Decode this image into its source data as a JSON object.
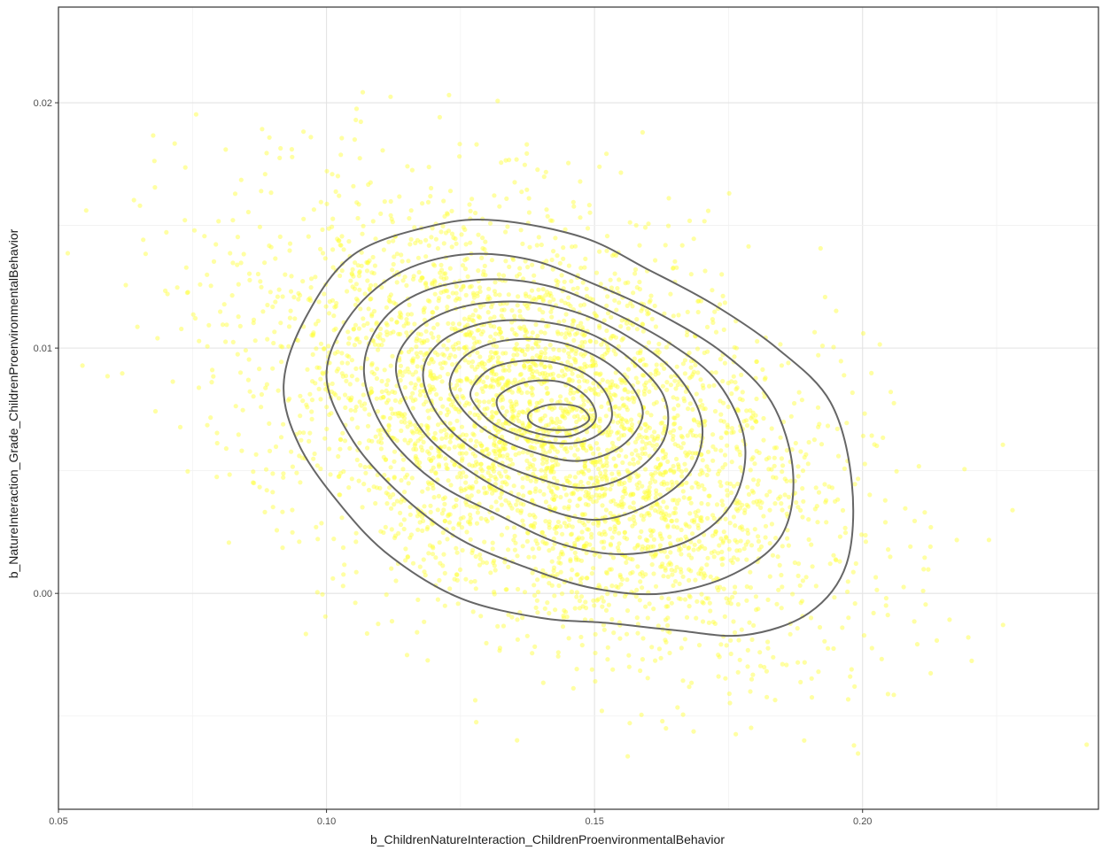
{
  "chart_data": {
    "type": "scatter",
    "title": "",
    "xlabel": "b_ChildrenNatureInteraction_ChildrenProenvironmentalBehavior",
    "ylabel": "b_NatureInteraction_Grade_ChildrenProenvironmentalBehavior",
    "xlim": [
      0.05,
      0.244
    ],
    "ylim": [
      -0.0088,
      0.0239
    ],
    "x_ticks": [
      0.05,
      0.1,
      0.15,
      0.2
    ],
    "x_tick_labels": [
      "0.05",
      "0.10",
      "0.15",
      "0.20"
    ],
    "y_ticks": [
      0.0,
      0.01,
      0.02
    ],
    "y_tick_labels": [
      "0.00",
      "0.01",
      "0.02"
    ],
    "grid": true,
    "legend": "none",
    "point_color": "#ffff33",
    "contour_color": "#666666",
    "point_cloud": {
      "n": 4000,
      "mean": [
        0.141,
        0.0068
      ],
      "sd": [
        0.027,
        0.0045
      ],
      "correlation": -0.45
    },
    "density_mode": [
      0.143,
      0.0072
    ],
    "contours": [
      {
        "level": 1,
        "points": [
          [
            0.092,
            0.0085
          ],
          [
            0.096,
            0.0112
          ],
          [
            0.105,
            0.0138
          ],
          [
            0.12,
            0.015
          ],
          [
            0.132,
            0.0152
          ],
          [
            0.148,
            0.0145
          ],
          [
            0.16,
            0.0132
          ],
          [
            0.172,
            0.0118
          ],
          [
            0.184,
            0.01
          ],
          [
            0.194,
            0.0078
          ],
          [
            0.198,
            0.0045
          ],
          [
            0.197,
            0.0012
          ],
          [
            0.19,
            -0.0008
          ],
          [
            0.178,
            -0.0017
          ],
          [
            0.165,
            -0.0015
          ],
          [
            0.152,
            -0.0012
          ],
          [
            0.14,
            -0.001
          ],
          [
            0.125,
            -0.0002
          ],
          [
            0.112,
            0.0015
          ],
          [
            0.103,
            0.0035
          ],
          [
            0.095,
            0.006
          ]
        ]
      },
      {
        "level": 2,
        "points": [
          [
            0.1,
            0.0088
          ],
          [
            0.104,
            0.0112
          ],
          [
            0.113,
            0.013
          ],
          [
            0.125,
            0.0138
          ],
          [
            0.138,
            0.0136
          ],
          [
            0.15,
            0.0126
          ],
          [
            0.162,
            0.0114
          ],
          [
            0.174,
            0.0098
          ],
          [
            0.183,
            0.0078
          ],
          [
            0.187,
            0.005
          ],
          [
            0.185,
            0.0024
          ],
          [
            0.176,
            0.0008
          ],
          [
            0.163,
            0.0
          ],
          [
            0.15,
            0.0002
          ],
          [
            0.138,
            0.001
          ],
          [
            0.125,
            0.0022
          ],
          [
            0.114,
            0.004
          ],
          [
            0.105,
            0.0062
          ]
        ]
      },
      {
        "level": 3,
        "points": [
          [
            0.107,
            0.009
          ],
          [
            0.11,
            0.011
          ],
          [
            0.118,
            0.0123
          ],
          [
            0.13,
            0.0128
          ],
          [
            0.142,
            0.0125
          ],
          [
            0.153,
            0.0115
          ],
          [
            0.164,
            0.0102
          ],
          [
            0.173,
            0.0086
          ],
          [
            0.178,
            0.0062
          ],
          [
            0.176,
            0.0038
          ],
          [
            0.168,
            0.0022
          ],
          [
            0.156,
            0.0016
          ],
          [
            0.144,
            0.002
          ],
          [
            0.132,
            0.0032
          ],
          [
            0.12,
            0.0046
          ],
          [
            0.111,
            0.0066
          ]
        ]
      },
      {
        "level": 4,
        "points": [
          [
            0.113,
            0.009
          ],
          [
            0.116,
            0.0106
          ],
          [
            0.124,
            0.0116
          ],
          [
            0.135,
            0.0119
          ],
          [
            0.146,
            0.0115
          ],
          [
            0.156,
            0.0105
          ],
          [
            0.165,
            0.009
          ],
          [
            0.17,
            0.007
          ],
          [
            0.168,
            0.005
          ],
          [
            0.16,
            0.0036
          ],
          [
            0.15,
            0.003
          ],
          [
            0.139,
            0.0036
          ],
          [
            0.128,
            0.0048
          ],
          [
            0.118,
            0.0066
          ]
        ]
      },
      {
        "level": 5,
        "points": [
          [
            0.118,
            0.0089
          ],
          [
            0.121,
            0.0102
          ],
          [
            0.129,
            0.011
          ],
          [
            0.139,
            0.0111
          ],
          [
            0.149,
            0.0106
          ],
          [
            0.157,
            0.0095
          ],
          [
            0.163,
            0.008
          ],
          [
            0.163,
            0.0063
          ],
          [
            0.157,
            0.0049
          ],
          [
            0.148,
            0.0043
          ],
          [
            0.138,
            0.0048
          ],
          [
            0.128,
            0.0058
          ],
          [
            0.121,
            0.0072
          ]
        ]
      },
      {
        "level": 6,
        "points": [
          [
            0.123,
            0.0086
          ],
          [
            0.126,
            0.0097
          ],
          [
            0.133,
            0.0103
          ],
          [
            0.142,
            0.0103
          ],
          [
            0.15,
            0.0097
          ],
          [
            0.156,
            0.0087
          ],
          [
            0.159,
            0.0073
          ],
          [
            0.155,
            0.006
          ],
          [
            0.147,
            0.0054
          ],
          [
            0.138,
            0.0058
          ],
          [
            0.13,
            0.0066
          ],
          [
            0.125,
            0.0076
          ]
        ]
      },
      {
        "level": 7,
        "points": [
          [
            0.127,
            0.0083
          ],
          [
            0.131,
            0.0092
          ],
          [
            0.139,
            0.0095
          ],
          [
            0.147,
            0.0091
          ],
          [
            0.152,
            0.0082
          ],
          [
            0.153,
            0.007
          ],
          [
            0.148,
            0.0062
          ],
          [
            0.14,
            0.0062
          ],
          [
            0.132,
            0.0068
          ],
          [
            0.128,
            0.0076
          ]
        ]
      },
      {
        "level": 8,
        "points": [
          [
            0.132,
            0.008
          ],
          [
            0.137,
            0.0086
          ],
          [
            0.144,
            0.0086
          ],
          [
            0.149,
            0.0079
          ],
          [
            0.15,
            0.007
          ],
          [
            0.145,
            0.0064
          ],
          [
            0.138,
            0.0066
          ],
          [
            0.133,
            0.0072
          ]
        ]
      },
      {
        "level": 9,
        "points": [
          [
            0.138,
            0.0074
          ],
          [
            0.142,
            0.0077
          ],
          [
            0.147,
            0.0076
          ],
          [
            0.149,
            0.0071
          ],
          [
            0.146,
            0.0067
          ],
          [
            0.141,
            0.0067
          ],
          [
            0.138,
            0.007
          ]
        ]
      }
    ]
  }
}
